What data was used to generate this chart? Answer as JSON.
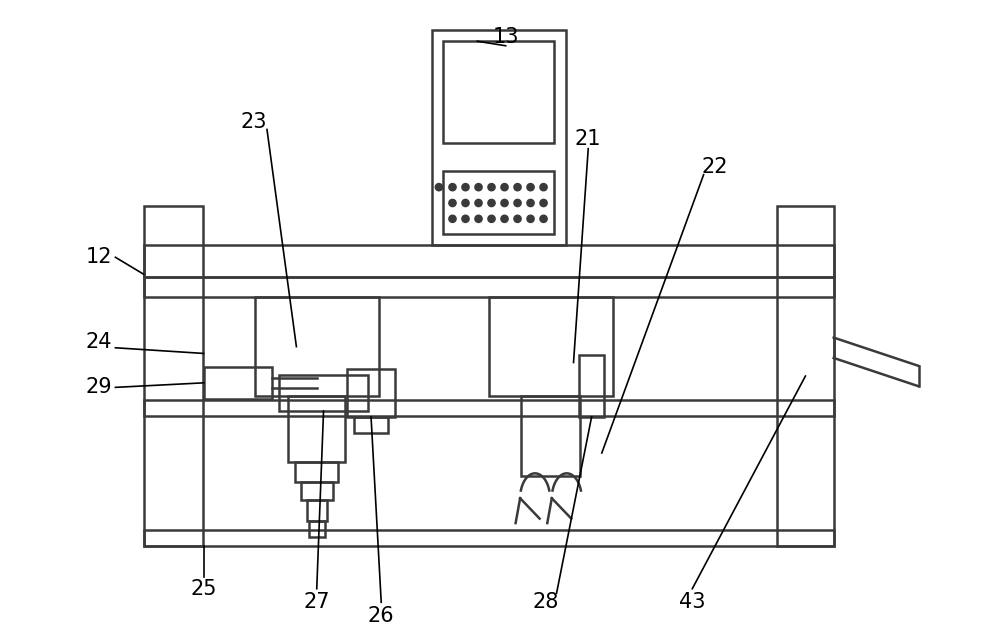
{
  "bg_color": "#ffffff",
  "line_color": "#3a3a3a",
  "lw": 1.8,
  "fig_width": 10.0,
  "fig_height": 6.39,
  "label_fontsize": 15
}
